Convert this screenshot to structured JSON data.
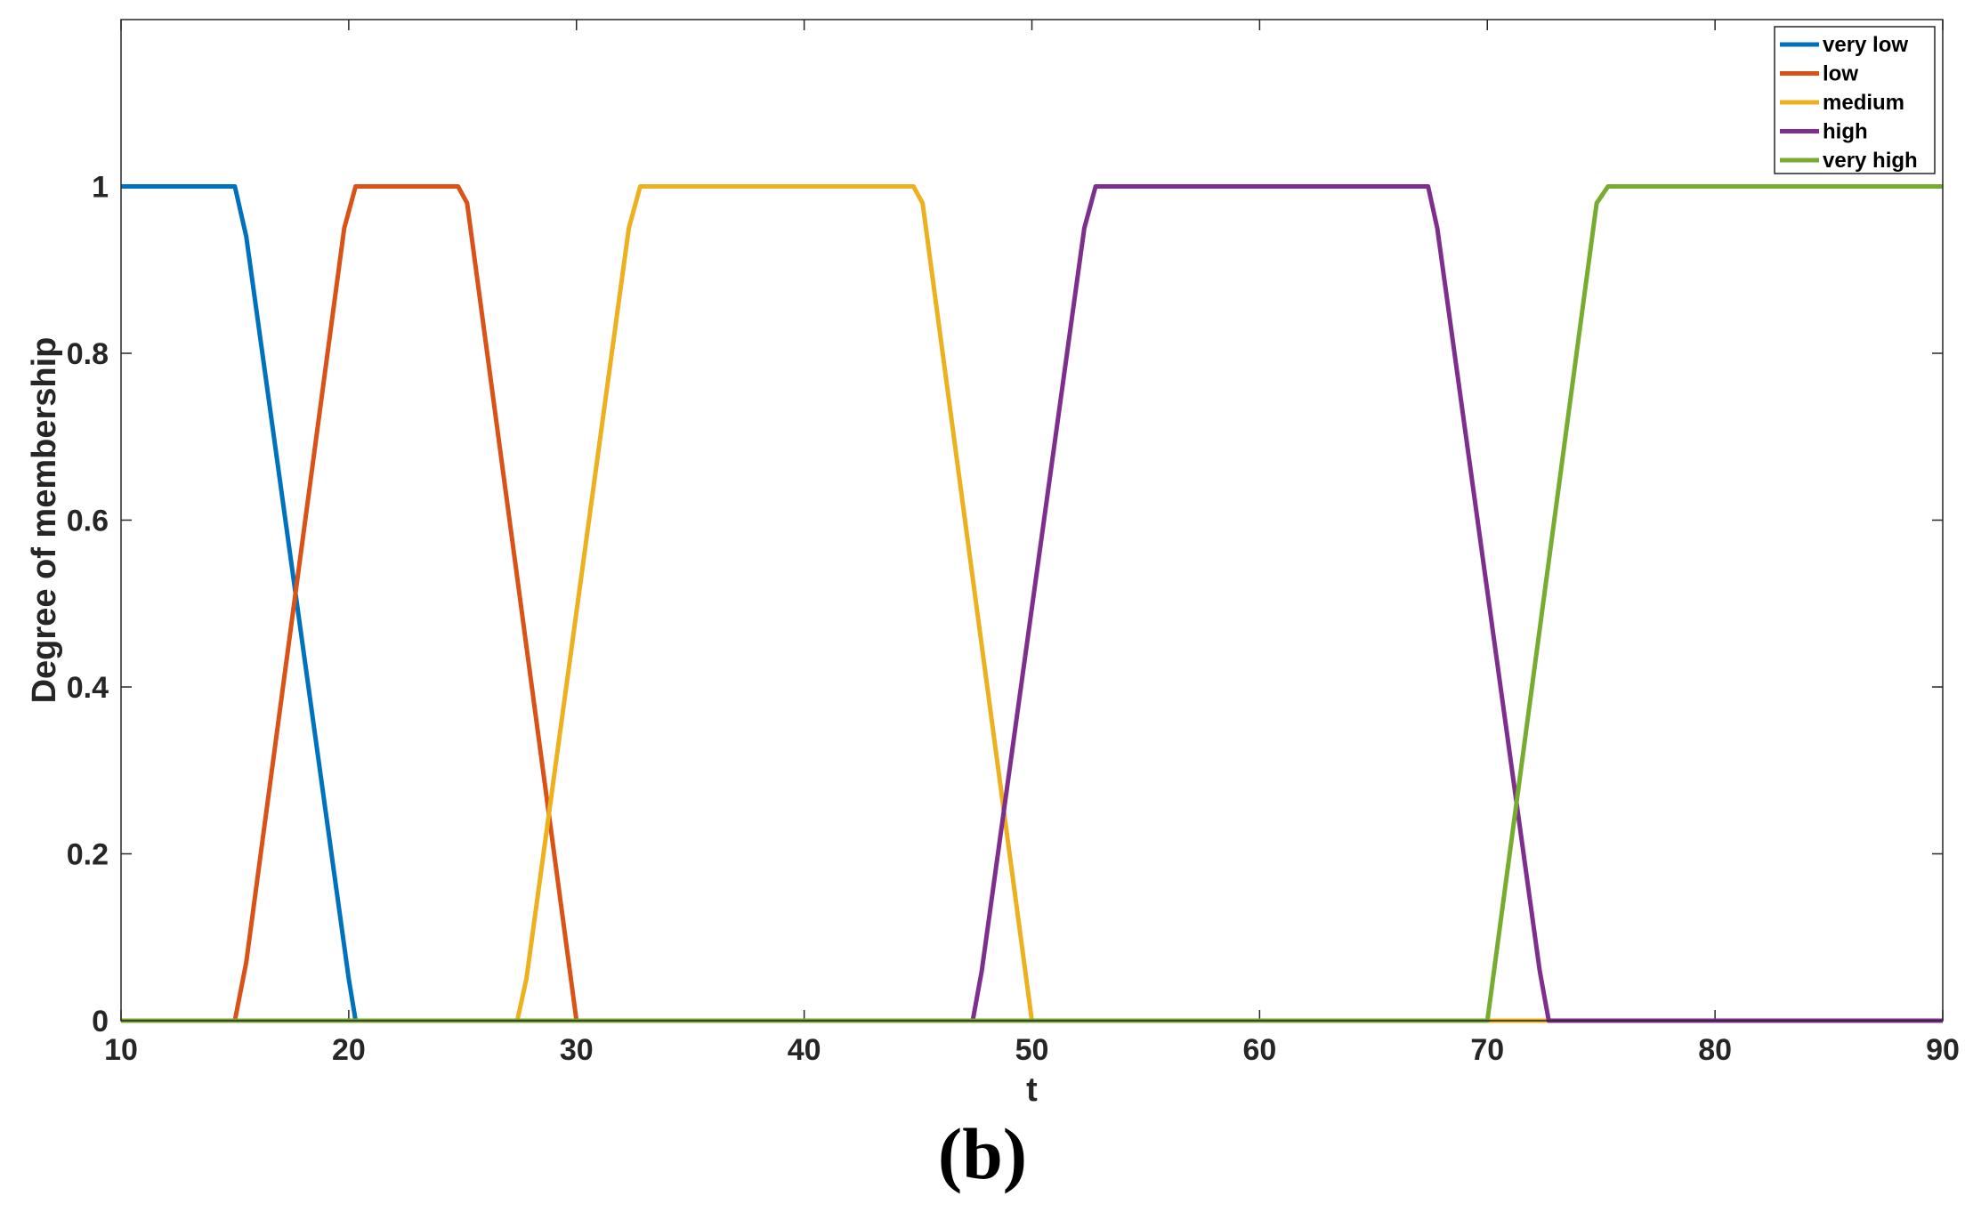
{
  "panel_label": "(b)",
  "chart_data": {
    "type": "line",
    "title": "",
    "xlabel": "t",
    "ylabel": "Degree of membership",
    "xlim": [
      10,
      90
    ],
    "ylim": [
      0,
      1.2
    ],
    "xticks": [
      10,
      20,
      30,
      40,
      50,
      60,
      70,
      80,
      90
    ],
    "yticks": [
      0,
      0.2,
      0.4,
      0.6,
      0.8,
      1
    ],
    "ytick_labels": [
      "0",
      "0.2",
      "0.4",
      "0.6",
      "0.8",
      "1"
    ],
    "grid": false,
    "legend_position": "top-right",
    "series": [
      {
        "name": "very low",
        "color": "#0072BD",
        "x": [
          10,
          15,
          15.5,
          20,
          20.3,
          90
        ],
        "y": [
          1,
          1,
          0.94,
          0.05,
          0,
          0
        ]
      },
      {
        "name": "low",
        "color": "#D95319",
        "x": [
          10,
          15,
          15.5,
          19.8,
          20.3,
          24.8,
          25.2,
          30,
          90
        ],
        "y": [
          0,
          0,
          0.07,
          0.95,
          1,
          1,
          0.98,
          0,
          0
        ]
      },
      {
        "name": "medium",
        "color": "#EDB120",
        "x": [
          10,
          27.4,
          27.8,
          32.3,
          32.8,
          44.8,
          45.2,
          50,
          90
        ],
        "y": [
          0,
          0,
          0.05,
          0.95,
          1,
          1,
          0.98,
          0,
          0
        ]
      },
      {
        "name": "high",
        "color": "#7E2F8E",
        "x": [
          10,
          47.4,
          47.8,
          52.3,
          52.8,
          67.4,
          67.8,
          72.3,
          72.7,
          90
        ],
        "y": [
          0,
          0,
          0.06,
          0.95,
          1,
          1,
          0.95,
          0.06,
          0,
          0
        ]
      },
      {
        "name": "very high",
        "color": "#77AC30",
        "x": [
          10,
          70,
          74.8,
          75.3,
          90
        ],
        "y": [
          0,
          0,
          0.98,
          1,
          1
        ]
      }
    ]
  }
}
